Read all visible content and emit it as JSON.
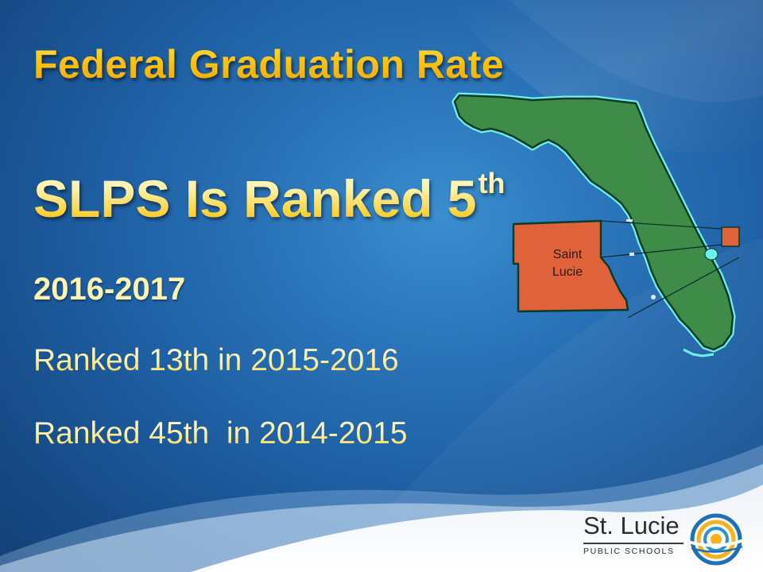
{
  "slide": {
    "title": "Federal Graduation Rate",
    "headline": "SLPS Is Ranked 5",
    "headline_superscript": "th",
    "current_year": "2016-2017",
    "rankings": [
      {
        "text": "Ranked 13th in 2015-2016"
      },
      {
        "text": "Ranked 45th  in 2014-2015"
      }
    ]
  },
  "map": {
    "county_label_line1": "Saint",
    "county_label_line2": "Lucie",
    "state_color": "#3e8c48",
    "county_color": "#e0623a",
    "outline_color": "#0a3a2a",
    "coast_color": "#6ff0ea"
  },
  "logo": {
    "name": "St. Lucie",
    "subtitle": "PUBLIC SCHOOLS",
    "ring_colors": [
      "#f6b21a",
      "#2f8fd0",
      "#1f6fb4"
    ]
  },
  "theme": {
    "background": "#2a73b8",
    "title_color": "#ffc000",
    "headline_color": "#ffe98a"
  }
}
